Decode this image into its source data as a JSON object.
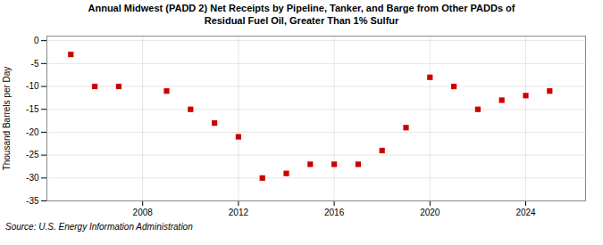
{
  "chart_data": {
    "type": "scatter",
    "title": "Annual Midwest (PADD 2) Net Receipts by Pipeline, Tanker, and Barge from Other PADDs of",
    "subtitle": "Residual Fuel Oil, Greater Than 1% Sulfur",
    "ylabel": "Thousand Barrels per Day",
    "caption": "Source: U.S. Energy Information Administration",
    "x": [
      2005,
      2006,
      2007,
      2009,
      2010,
      2011,
      2012,
      2013,
      2014,
      2015,
      2016,
      2017,
      2018,
      2019,
      2020,
      2021,
      2022,
      2023,
      2024,
      2025
    ],
    "values": [
      -3,
      -10,
      -10,
      -11,
      -15,
      -18,
      -21,
      -30,
      -29,
      -27,
      -27,
      -27,
      -24,
      -19,
      -8,
      -10,
      -15,
      -13,
      -12,
      -11
    ],
    "color": "#cc0000",
    "marker": "square",
    "xlim": [
      2004.0,
      2026.5
    ],
    "ylim": [
      -35,
      1
    ],
    "xticks": [
      2008,
      2012,
      2016,
      2020,
      2024
    ],
    "yticks": [
      0,
      -5,
      -10,
      -15,
      -20,
      -25,
      -30,
      -35
    ],
    "grid": true
  }
}
